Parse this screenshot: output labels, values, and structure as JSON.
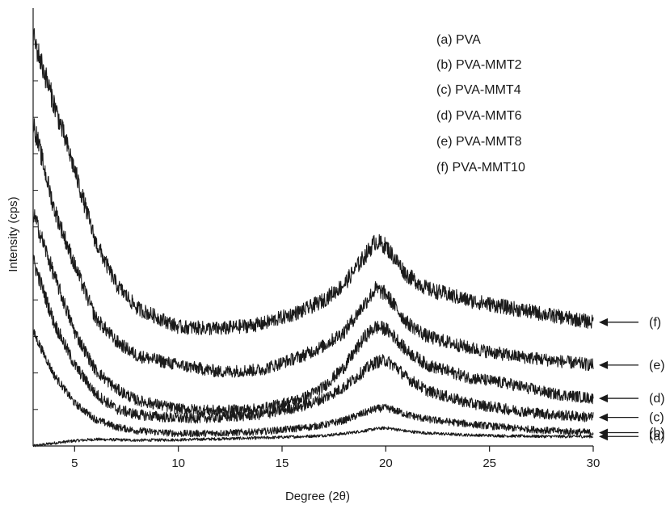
{
  "chart_data": {
    "type": "line",
    "title": "",
    "xlabel": "Degree (2θ)",
    "ylabel": "Intensity (cps)",
    "xlim": [
      3,
      30
    ],
    "x_ticks": [
      5,
      10,
      15,
      20,
      25,
      30
    ],
    "y_scale": "arbitrary, no tick labels, curves vertically offset",
    "grid": false,
    "legend_position": "top-right",
    "legend": [
      "(a) PVA",
      "(b) PVA-MMT2",
      "(c) PVA-MMT4",
      "(d) PVA-MMT6",
      "(e) PVA-MMT8",
      "(f) PVA-MMT10"
    ],
    "x": [
      3,
      4,
      5,
      6,
      7,
      8,
      10,
      12,
      14,
      16,
      17,
      18,
      19,
      19.5,
      20,
      20.5,
      21,
      22,
      24,
      26,
      28,
      30
    ],
    "series": [
      {
        "name": "(a) PVA",
        "curve_label": "(a)",
        "noise": 0.15,
        "values": [
          0.0,
          0.3,
          0.55,
          0.7,
          0.65,
          0.6,
          0.65,
          0.75,
          0.85,
          1.0,
          1.1,
          1.3,
          1.6,
          1.8,
          1.9,
          1.75,
          1.55,
          1.35,
          1.15,
          1.05,
          1.0,
          1.0
        ]
      },
      {
        "name": "(b) PVA-MMT2",
        "curve_label": "(b)",
        "noise": 0.35,
        "values": [
          12.0,
          7.5,
          4.5,
          2.8,
          2.0,
          1.6,
          1.3,
          1.35,
          1.5,
          1.9,
          2.2,
          2.7,
          3.5,
          3.9,
          4.0,
          3.7,
          3.3,
          2.8,
          2.3,
          1.9,
          1.6,
          1.4
        ]
      },
      {
        "name": "(c) PVA-MMT4",
        "curve_label": "(c)",
        "noise": 0.5,
        "values": [
          19.5,
          13.0,
          8.5,
          5.5,
          3.9,
          3.3,
          2.9,
          3.0,
          3.3,
          4.2,
          5.0,
          6.2,
          8.0,
          8.8,
          9.0,
          8.3,
          7.2,
          5.8,
          4.5,
          3.8,
          3.3,
          3.0
        ]
      },
      {
        "name": "(d) PVA-MMT6",
        "curve_label": "(d)",
        "noise": 0.5,
        "values": [
          24.5,
          18.0,
          12.0,
          8.0,
          6.0,
          4.8,
          3.9,
          3.7,
          3.9,
          5.0,
          6.2,
          8.3,
          11.5,
          12.5,
          12.3,
          11.3,
          10.0,
          8.5,
          7.2,
          6.5,
          5.5,
          5.0
        ]
      },
      {
        "name": "(e) PVA-MMT8",
        "curve_label": "(e)",
        "noise": 0.5,
        "values": [
          34.0,
          25.0,
          19.0,
          13.5,
          11.0,
          9.5,
          8.5,
          7.8,
          8.0,
          9.5,
          10.5,
          12.0,
          15.0,
          16.5,
          16.0,
          14.5,
          13.0,
          11.5,
          10.3,
          9.5,
          9.0,
          8.5
        ]
      },
      {
        "name": "(f) PVA-MMT10",
        "curve_label": "(f)",
        "noise": 0.5,
        "values": [
          43.0,
          36.0,
          29.0,
          21.5,
          17.0,
          14.5,
          12.5,
          12.3,
          12.8,
          14.2,
          15.3,
          17.0,
          20.0,
          21.5,
          21.0,
          19.5,
          18.0,
          16.5,
          15.3,
          14.5,
          13.7,
          13.0
        ]
      }
    ],
    "colors": {
      "line": "#1a1a1a",
      "axis": "#1a1a1a",
      "background": "#ffffff"
    }
  }
}
